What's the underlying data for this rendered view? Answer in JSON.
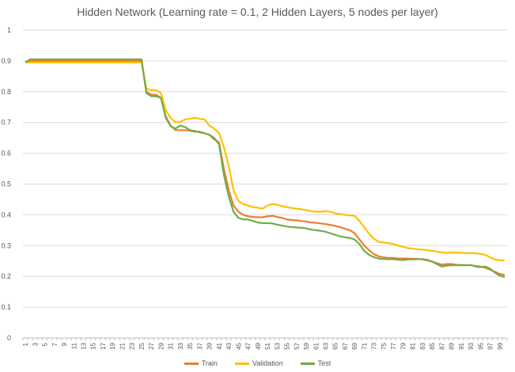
{
  "chart_data": {
    "type": "line",
    "title": "Hidden Network (Learning rate = 0.1, 2 Hidden Layers, 5 nodes per layer)",
    "xlabel": "",
    "ylabel": "",
    "ylim": [
      0,
      1
    ],
    "yticks": [
      "0",
      "0.1",
      "0.2",
      "0.3",
      "0.4",
      "0.5",
      "0.6",
      "0.7",
      "0.8",
      "0.9",
      "1"
    ],
    "x_tick_labels": [
      "1",
      "3",
      "5",
      "7",
      "9",
      "11",
      "13",
      "15",
      "17",
      "19",
      "21",
      "23",
      "25",
      "27",
      "29",
      "31",
      "33",
      "35",
      "37",
      "39",
      "41",
      "43",
      "45",
      "47",
      "49",
      "51",
      "53",
      "55",
      "57",
      "59",
      "61",
      "63",
      "65",
      "67",
      "69",
      "71",
      "73",
      "75",
      "77",
      "79",
      "81",
      "83",
      "85",
      "87",
      "89",
      "91",
      "93",
      "95",
      "97",
      "99"
    ],
    "grid": true,
    "legend_position": "bottom",
    "x": [
      1,
      2,
      3,
      4,
      5,
      6,
      7,
      8,
      9,
      10,
      11,
      12,
      13,
      14,
      15,
      16,
      17,
      18,
      19,
      20,
      21,
      22,
      23,
      24,
      25,
      26,
      27,
      28,
      29,
      30,
      31,
      32,
      33,
      34,
      35,
      36,
      37,
      38,
      39,
      40,
      41,
      42,
      43,
      44,
      45,
      46,
      47,
      48,
      49,
      50,
      51,
      52,
      53,
      54,
      55,
      56,
      57,
      58,
      59,
      60,
      61,
      62,
      63,
      64,
      65,
      66,
      67,
      68,
      69,
      70,
      71,
      72,
      73,
      74,
      75,
      76,
      77,
      78,
      79,
      80,
      81,
      82,
      83,
      84,
      85,
      86,
      87,
      88,
      89,
      90,
      91,
      92,
      93,
      94,
      95,
      96,
      97,
      98,
      99,
      100
    ],
    "series": [
      {
        "name": "Train",
        "color": "#ed7d31",
        "values": [
          0.895,
          0.9,
          0.9,
          0.9,
          0.9,
          0.9,
          0.9,
          0.9,
          0.9,
          0.9,
          0.9,
          0.9,
          0.9,
          0.9,
          0.9,
          0.9,
          0.9,
          0.9,
          0.9,
          0.9,
          0.9,
          0.9,
          0.9,
          0.9,
          0.9,
          0.8,
          0.79,
          0.79,
          0.78,
          0.72,
          0.69,
          0.675,
          0.675,
          0.675,
          0.673,
          0.67,
          0.67,
          0.665,
          0.66,
          0.645,
          0.635,
          0.55,
          0.48,
          0.43,
          0.41,
          0.4,
          0.395,
          0.393,
          0.392,
          0.392,
          0.395,
          0.397,
          0.393,
          0.39,
          0.385,
          0.383,
          0.382,
          0.38,
          0.378,
          0.375,
          0.374,
          0.372,
          0.37,
          0.367,
          0.364,
          0.36,
          0.355,
          0.35,
          0.34,
          0.32,
          0.3,
          0.285,
          0.272,
          0.265,
          0.262,
          0.26,
          0.26,
          0.258,
          0.258,
          0.258,
          0.257,
          0.257,
          0.255,
          0.252,
          0.248,
          0.243,
          0.238,
          0.24,
          0.24,
          0.238,
          0.237,
          0.237,
          0.236,
          0.234,
          0.232,
          0.228,
          0.222,
          0.215,
          0.208,
          0.205
        ]
      },
      {
        "name": "Validation",
        "color": "#ffc000",
        "values": [
          0.895,
          0.895,
          0.895,
          0.895,
          0.895,
          0.895,
          0.895,
          0.895,
          0.895,
          0.895,
          0.895,
          0.895,
          0.895,
          0.895,
          0.895,
          0.895,
          0.895,
          0.895,
          0.895,
          0.895,
          0.895,
          0.895,
          0.895,
          0.895,
          0.895,
          0.81,
          0.805,
          0.805,
          0.795,
          0.74,
          0.715,
          0.7,
          0.702,
          0.71,
          0.712,
          0.715,
          0.712,
          0.71,
          0.69,
          0.68,
          0.665,
          0.62,
          0.56,
          0.48,
          0.445,
          0.435,
          0.43,
          0.425,
          0.423,
          0.42,
          0.43,
          0.435,
          0.433,
          0.428,
          0.425,
          0.422,
          0.42,
          0.418,
          0.415,
          0.412,
          0.41,
          0.41,
          0.412,
          0.41,
          0.405,
          0.402,
          0.4,
          0.398,
          0.397,
          0.38,
          0.36,
          0.338,
          0.322,
          0.312,
          0.31,
          0.308,
          0.305,
          0.3,
          0.296,
          0.292,
          0.29,
          0.288,
          0.287,
          0.285,
          0.283,
          0.28,
          0.278,
          0.276,
          0.278,
          0.277,
          0.277,
          0.275,
          0.276,
          0.275,
          0.273,
          0.27,
          0.262,
          0.255,
          0.252,
          0.252
        ]
      },
      {
        "name": "Test",
        "color": "#70ad47",
        "values": [
          0.895,
          0.905,
          0.905,
          0.905,
          0.905,
          0.905,
          0.905,
          0.905,
          0.905,
          0.905,
          0.905,
          0.905,
          0.905,
          0.905,
          0.905,
          0.905,
          0.905,
          0.905,
          0.905,
          0.905,
          0.905,
          0.905,
          0.905,
          0.905,
          0.905,
          0.795,
          0.785,
          0.785,
          0.78,
          0.715,
          0.688,
          0.68,
          0.69,
          0.685,
          0.675,
          0.672,
          0.668,
          0.665,
          0.66,
          0.65,
          0.63,
          0.53,
          0.46,
          0.41,
          0.39,
          0.385,
          0.385,
          0.38,
          0.375,
          0.373,
          0.373,
          0.372,
          0.368,
          0.365,
          0.362,
          0.36,
          0.359,
          0.358,
          0.356,
          0.352,
          0.35,
          0.348,
          0.345,
          0.34,
          0.335,
          0.33,
          0.327,
          0.325,
          0.32,
          0.305,
          0.283,
          0.27,
          0.262,
          0.258,
          0.256,
          0.256,
          0.256,
          0.254,
          0.253,
          0.255,
          0.255,
          0.256,
          0.256,
          0.254,
          0.248,
          0.24,
          0.232,
          0.235,
          0.236,
          0.236,
          0.236,
          0.236,
          0.237,
          0.232,
          0.23,
          0.232,
          0.225,
          0.212,
          0.202,
          0.198
        ]
      }
    ]
  }
}
